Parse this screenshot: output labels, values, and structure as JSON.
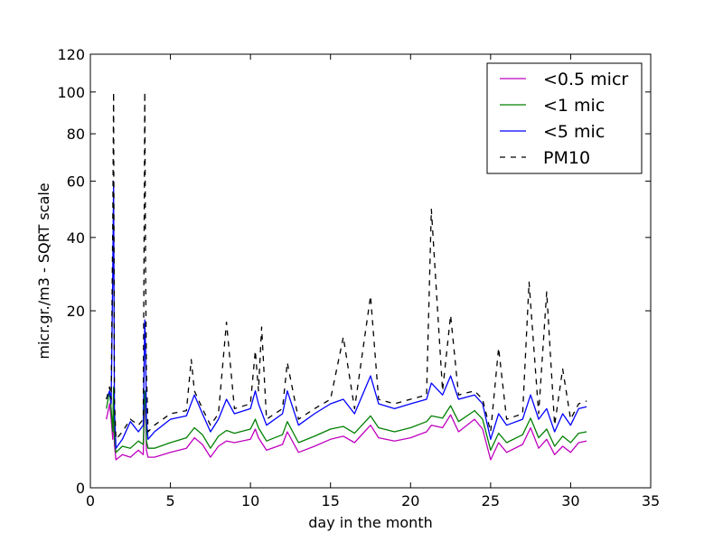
{
  "chart_data": {
    "type": "line",
    "xlabel": "day in the month",
    "ylabel": "micr.gr./m3 - SQRT scale",
    "xlim": [
      0,
      35
    ],
    "ylim": [
      0,
      120
    ],
    "y_scale": "sqrt",
    "xticks": [
      0,
      5,
      10,
      15,
      20,
      25,
      30,
      35
    ],
    "yticks": [
      0,
      20,
      40,
      60,
      80,
      100,
      120
    ],
    "grid": false,
    "legend_position": "top-right",
    "series": [
      {
        "name": "<0.5 micr",
        "color": "#bf00bf",
        "style": "solid",
        "x": [
          1.0,
          1.2,
          1.3,
          1.4,
          1.45,
          1.5,
          1.6,
          2.0,
          2.5,
          3.0,
          3.3,
          3.4,
          3.45,
          3.5,
          3.6,
          4.0,
          5.0,
          6.0,
          6.5,
          7.0,
          7.5,
          8.0,
          8.5,
          9.0,
          10.0,
          10.3,
          10.5,
          11.0,
          12.0,
          12.3,
          13.0,
          14.0,
          15.0,
          15.8,
          16.5,
          17.5,
          18.0,
          19.0,
          20.0,
          21.0,
          21.3,
          22.0,
          22.5,
          23.0,
          24.0,
          24.5,
          25.0,
          25.5,
          26.0,
          27.0,
          27.5,
          28.0,
          28.5,
          29.0,
          29.5,
          30.0,
          30.5,
          31.0
        ],
        "y": [
          3.0,
          4.5,
          3.0,
          1.5,
          5.0,
          1.2,
          0.5,
          0.7,
          0.6,
          0.9,
          0.7,
          5.0,
          4.0,
          0.9,
          0.6,
          0.6,
          0.8,
          1.0,
          1.6,
          1.2,
          0.6,
          1.1,
          1.4,
          1.3,
          1.5,
          2.2,
          1.6,
          0.9,
          1.2,
          2.0,
          0.8,
          1.1,
          1.5,
          1.7,
          1.3,
          2.5,
          1.6,
          1.4,
          1.6,
          2.0,
          2.5,
          2.3,
          3.4,
          2.0,
          3.0,
          2.2,
          0.5,
          1.3,
          0.8,
          1.2,
          2.3,
          1.0,
          1.5,
          0.7,
          1.1,
          0.8,
          1.3,
          1.4
        ]
      },
      {
        "name": "<1 mic",
        "color": "#008000",
        "style": "solid",
        "x": [
          1.0,
          1.2,
          1.3,
          1.4,
          1.45,
          1.5,
          1.6,
          2.0,
          2.5,
          3.0,
          3.3,
          3.4,
          3.45,
          3.5,
          3.6,
          4.0,
          5.0,
          6.0,
          6.5,
          7.0,
          7.5,
          8.0,
          8.5,
          9.0,
          10.0,
          10.3,
          10.5,
          11.0,
          12.0,
          12.3,
          13.0,
          14.0,
          15.0,
          15.8,
          16.5,
          17.5,
          18.0,
          19.0,
          20.0,
          21.0,
          21.3,
          22.0,
          22.5,
          23.0,
          24.0,
          24.5,
          25.0,
          25.5,
          26.0,
          27.0,
          27.5,
          28.0,
          28.5,
          29.0,
          29.5,
          30.0,
          30.5,
          31.0
        ],
        "y": [
          4.0,
          6.0,
          4.0,
          2.0,
          6.5,
          1.6,
          0.8,
          1.1,
          1.0,
          1.4,
          1.2,
          6.0,
          5.0,
          1.4,
          1.0,
          1.0,
          1.3,
          1.6,
          2.3,
          1.8,
          1.0,
          1.7,
          2.1,
          1.9,
          2.2,
          3.0,
          2.3,
          1.4,
          1.8,
          2.8,
          1.3,
          1.7,
          2.2,
          2.4,
          1.9,
          3.3,
          2.3,
          2.0,
          2.3,
          2.8,
          3.3,
          3.1,
          4.3,
          2.8,
          3.8,
          3.0,
          0.9,
          1.9,
          1.3,
          1.8,
          3.1,
          1.6,
          2.2,
          1.1,
          1.7,
          1.3,
          1.9,
          2.0
        ]
      },
      {
        "name": "<5 mic",
        "color": "#0000ff",
        "style": "solid",
        "x": [
          1.0,
          1.2,
          1.3,
          1.4,
          1.45,
          1.5,
          1.6,
          2.0,
          2.5,
          3.0,
          3.3,
          3.4,
          3.45,
          3.5,
          3.6,
          4.0,
          5.0,
          6.0,
          6.5,
          7.0,
          7.5,
          8.0,
          8.5,
          9.0,
          10.0,
          10.3,
          10.5,
          11.0,
          12.0,
          12.3,
          13.0,
          14.0,
          15.0,
          15.8,
          16.5,
          17.5,
          18.0,
          19.0,
          20.0,
          21.0,
          21.3,
          22.0,
          22.5,
          23.0,
          24.0,
          24.5,
          25.0,
          25.5,
          26.0,
          27.0,
          27.5,
          28.0,
          28.5,
          29.0,
          29.5,
          30.0,
          30.5,
          31.0
        ],
        "y": [
          5.0,
          6.0,
          4.5,
          30.0,
          60.0,
          4.0,
          1.0,
          1.5,
          2.8,
          2.0,
          2.5,
          18.0,
          12.0,
          3.0,
          1.5,
          2.0,
          3.0,
          3.3,
          5.5,
          3.5,
          2.0,
          3.0,
          5.0,
          3.5,
          4.0,
          6.0,
          4.5,
          2.5,
          3.5,
          6.0,
          2.5,
          3.5,
          4.5,
          5.0,
          3.5,
          8.0,
          4.5,
          4.0,
          4.5,
          5.0,
          7.0,
          5.5,
          8.0,
          5.0,
          5.5,
          4.5,
          1.5,
          3.5,
          2.5,
          3.0,
          5.5,
          3.0,
          4.0,
          2.0,
          3.5,
          2.5,
          4.0,
          4.2
        ]
      },
      {
        "name": "PM10",
        "color": "#000000",
        "style": "dashed",
        "x": [
          1.0,
          1.2,
          1.3,
          1.4,
          1.45,
          1.5,
          1.6,
          2.0,
          2.5,
          3.0,
          3.3,
          3.4,
          3.45,
          3.5,
          3.6,
          4.0,
          5.0,
          6.0,
          6.3,
          6.5,
          7.0,
          7.5,
          8.0,
          8.5,
          9.0,
          10.0,
          10.3,
          10.5,
          10.7,
          11.0,
          12.0,
          12.3,
          13.0,
          14.0,
          15.0,
          15.8,
          16.5,
          17.5,
          18.0,
          19.0,
          20.0,
          21.0,
          21.3,
          22.0,
          22.5,
          23.0,
          24.0,
          24.5,
          25.0,
          25.5,
          26.0,
          27.0,
          27.4,
          28.0,
          28.5,
          29.0,
          29.5,
          30.0,
          30.5,
          31.0
        ],
        "y": [
          5.0,
          6.5,
          5.0,
          45.0,
          100.0,
          5.0,
          1.5,
          2.0,
          3.0,
          2.5,
          3.0,
          100.0,
          30.0,
          9.0,
          2.0,
          2.5,
          3.5,
          3.8,
          10.5,
          6.0,
          4.0,
          2.5,
          3.5,
          17.5,
          4.0,
          4.5,
          12.0,
          6.0,
          16.5,
          3.0,
          4.0,
          10.0,
          3.0,
          4.0,
          5.0,
          14.5,
          4.0,
          23.5,
          5.0,
          4.5,
          5.0,
          5.5,
          49.5,
          6.0,
          19.0,
          5.5,
          6.0,
          5.0,
          2.0,
          12.5,
          3.0,
          3.5,
          27.0,
          3.5,
          24.5,
          2.5,
          9.0,
          3.0,
          4.5,
          4.8
        ]
      }
    ]
  }
}
